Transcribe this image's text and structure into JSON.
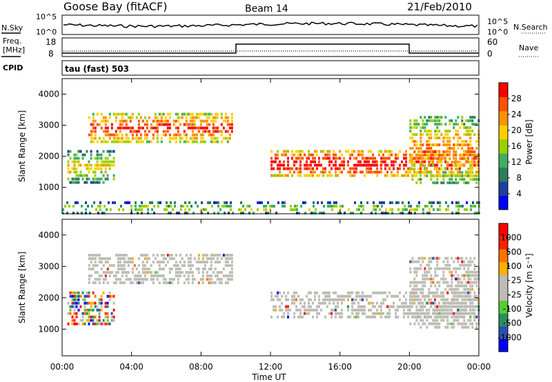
{
  "header": {
    "station": "Goose Bay (fitACF)",
    "beam": "Beam 14",
    "date": "21/Feb/2010"
  },
  "strips": {
    "nsky_label": "N.Sky",
    "nsky_ticks": [
      "10^5",
      "10^0"
    ],
    "nsearch_label": "N.Search",
    "nsearch_ticks": [
      "10^5",
      "10^0"
    ],
    "freq_label": "Freq.",
    "freq_unit": "[MHz]",
    "freq_ticks": [
      "18",
      "8"
    ],
    "nave_label": "Nave",
    "nave_ticks": [
      "60",
      "0"
    ],
    "cpid_label": "CPID",
    "cpid_value": "tau (fast) 503"
  },
  "colors": {
    "power_scale": [
      "#0000ff",
      "#1f3fa0",
      "#2e7d5e",
      "#3fae60",
      "#9ad000",
      "#ffd000",
      "#ff9000",
      "#ff5000",
      "#ff0000"
    ],
    "velocity_scale": [
      "#0000ff",
      "#2a4fb0",
      "#2a8f60",
      "#55cc33",
      "#bcbcb4",
      "#bcbcb4",
      "#ffb000",
      "#ff7000",
      "#ff2000",
      "#ff0000"
    ],
    "ground_scatter": "#bcbcb4"
  },
  "chart_data": [
    {
      "type": "heatmap",
      "title": "Power",
      "ylabel": "Slant Range [km]",
      "yticks": [
        "1000",
        "2000",
        "3000",
        "4000"
      ],
      "ylim": [
        150,
        4500
      ],
      "xlim": [
        0,
        24
      ],
      "colorbar_label": "Power [dB]",
      "colorbar_ticks": [
        "4",
        "8",
        "12",
        "16",
        "20",
        "24",
        "28"
      ],
      "blobs": [
        {
          "t0": 0.3,
          "t1": 3.0,
          "r0": 1200,
          "r1": 2200,
          "level": 0.25
        },
        {
          "t0": 1.5,
          "t1": 9.8,
          "r0": 2500,
          "r1": 3400,
          "level": 0.5
        },
        {
          "t0": 12.0,
          "t1": 24.0,
          "r0": 1400,
          "r1": 2200,
          "level": 0.6
        },
        {
          "t0": 20.0,
          "t1": 24.0,
          "r0": 1100,
          "r1": 3300,
          "level": 0.35
        },
        {
          "t0": 0.0,
          "t1": 24.0,
          "r0": 180,
          "r1": 550,
          "level": 0.15
        }
      ]
    },
    {
      "type": "heatmap",
      "title": "Velocity",
      "ylabel": "Slant Range [km]",
      "yticks": [
        "1000",
        "2000",
        "3000",
        "4000"
      ],
      "ylim": [
        150,
        4500
      ],
      "xlim": [
        0,
        24
      ],
      "xlabel": "Time UT",
      "xticks": [
        "00:00",
        "04:00",
        "08:00",
        "12:00",
        "16:00",
        "20:00",
        "00:00"
      ],
      "colorbar_label": "Velocity [m s⁻¹]",
      "colorbar_ticks": [
        "1000",
        "500",
        "100",
        "25",
        "-25",
        "-100",
        "-500",
        "-1000"
      ],
      "blobs": [
        {
          "t0": 0.3,
          "t1": 3.0,
          "r0": 1200,
          "r1": 2200,
          "level": 0.3
        },
        {
          "t0": 1.5,
          "t1": 9.8,
          "r0": 2500,
          "r1": 3400,
          "level": 0.5
        },
        {
          "t0": 12.0,
          "t1": 24.0,
          "r0": 1400,
          "r1": 2200,
          "level": 0.5
        },
        {
          "t0": 20.0,
          "t1": 24.0,
          "r0": 1100,
          "r1": 3300,
          "level": 0.5
        }
      ]
    }
  ]
}
